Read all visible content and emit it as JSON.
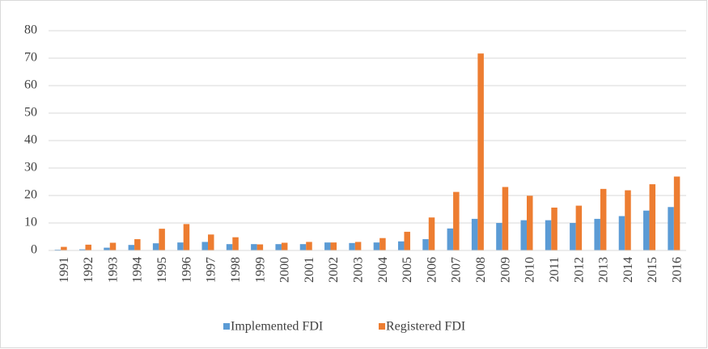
{
  "chart_data": {
    "type": "bar",
    "categories": [
      "1991",
      "1992",
      "1993",
      "1994",
      "1995",
      "1996",
      "1997",
      "1998",
      "1999",
      "2000",
      "2001",
      "2002",
      "2003",
      "2004",
      "2005",
      "2006",
      "2007",
      "2008",
      "2009",
      "2010",
      "2011",
      "2012",
      "2013",
      "2014",
      "2015",
      "2016"
    ],
    "series": [
      {
        "name": "Implemented FDI",
        "color": "#5b9bd5",
        "values": [
          0.3,
          0.4,
          1.0,
          2.0,
          2.6,
          2.9,
          3.1,
          2.3,
          2.3,
          2.3,
          2.3,
          2.9,
          2.7,
          2.9,
          3.3,
          4.1,
          8.0,
          11.5,
          10.0,
          11.0,
          11.0,
          10.0,
          11.5,
          12.5,
          14.5,
          15.8
        ]
      },
      {
        "name": "Registered FDI",
        "color": "#ed7d31",
        "values": [
          1.3,
          2.1,
          2.8,
          4.1,
          7.9,
          9.6,
          5.8,
          4.8,
          2.2,
          2.8,
          3.1,
          2.9,
          3.1,
          4.5,
          6.8,
          12.0,
          21.3,
          71.7,
          23.1,
          19.9,
          15.6,
          16.3,
          22.4,
          21.9,
          24.1,
          26.9
        ]
      }
    ],
    "ylim": [
      0,
      80
    ],
    "yticks": [
      0,
      10,
      20,
      30,
      40,
      50,
      60,
      70,
      80
    ],
    "grid": true,
    "legend": "bottom"
  }
}
